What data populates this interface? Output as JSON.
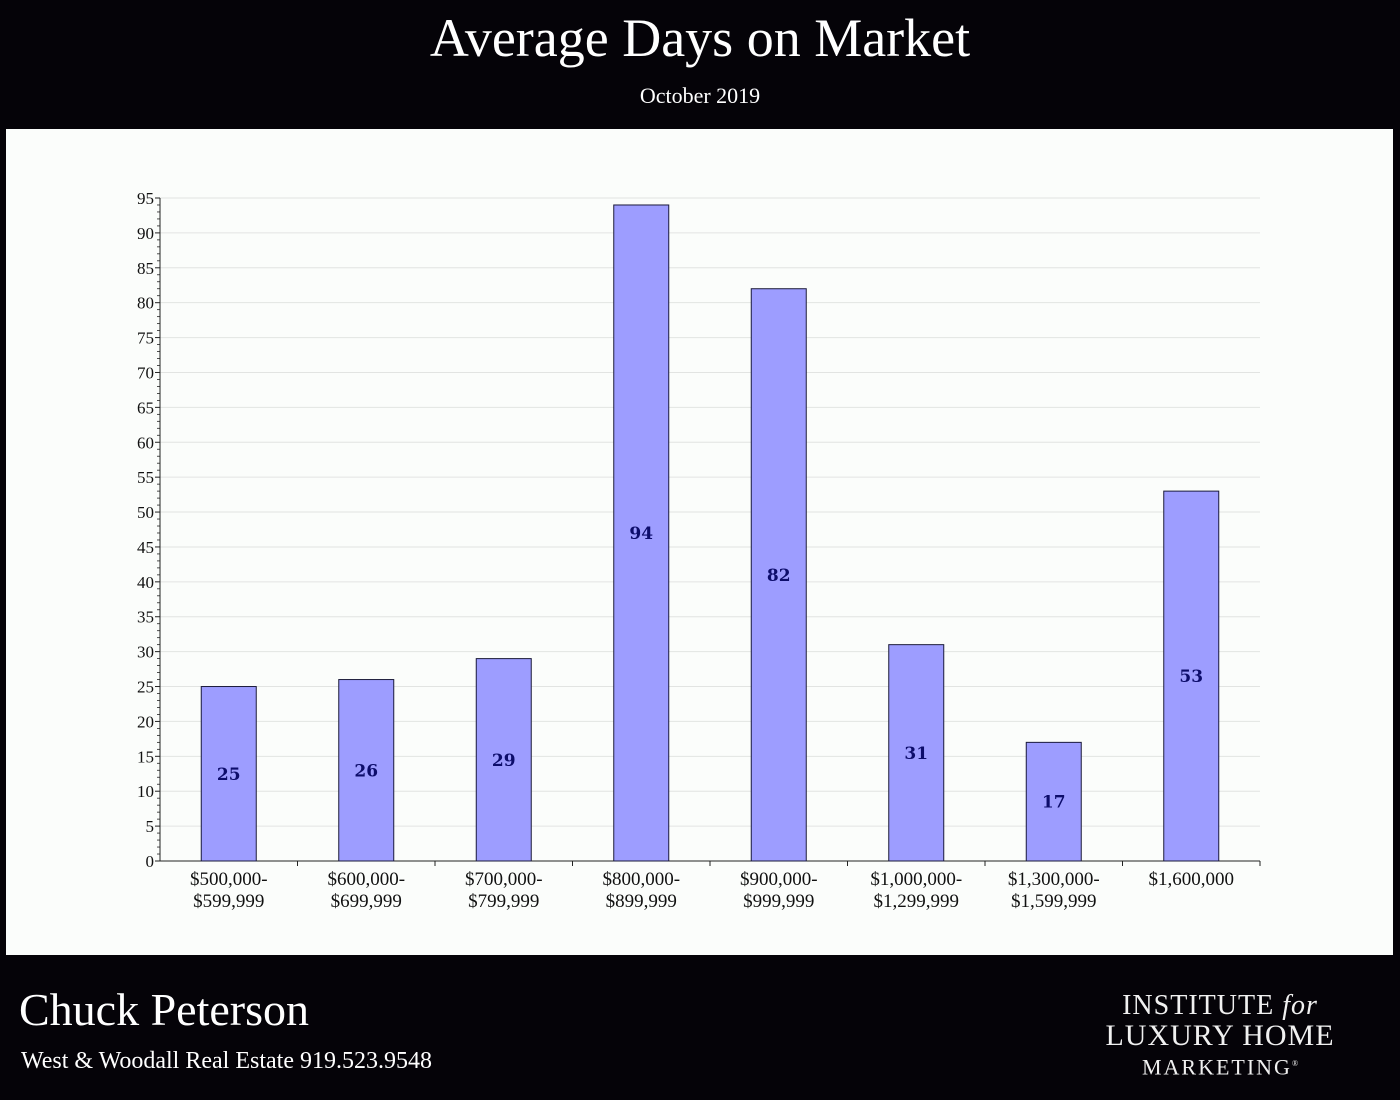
{
  "header": {
    "title": "Average Days on Market",
    "subtitle": "October 2019"
  },
  "chart_data": {
    "type": "bar",
    "categories": [
      [
        "$500,000-",
        "$599,999"
      ],
      [
        "$600,000-",
        "$699,999"
      ],
      [
        "$700,000-",
        "$799,999"
      ],
      [
        "$800,000-",
        "$899,999"
      ],
      [
        "$900,000-",
        "$999,999"
      ],
      [
        "$1,000,000-",
        "$1,299,999"
      ],
      [
        "$1,300,000-",
        "$1,599,999"
      ],
      [
        "$1,600,000"
      ]
    ],
    "values": [
      25,
      26,
      29,
      94,
      82,
      31,
      17,
      53
    ],
    "data_labels": [
      "25",
      "26",
      "29",
      "94",
      "82",
      "31",
      "17",
      "53"
    ],
    "ylim": [
      0,
      95
    ],
    "y_ticks": [
      0,
      5,
      10,
      15,
      20,
      25,
      30,
      35,
      40,
      45,
      50,
      55,
      60,
      65,
      70,
      75,
      80,
      85,
      90,
      95
    ],
    "xlabel": "",
    "ylabel": "",
    "grid": true,
    "legend": "none",
    "colors": {
      "bar_fill": "#9d9dff",
      "bar_stroke": "#1a1a3a",
      "data_label": "#0d0d6b",
      "grid": "#e2e4e2",
      "axis": "#222222",
      "panel_bg": "#fbfdfb",
      "page_bg": "#050308"
    }
  },
  "footer": {
    "agent_name": "Chuck Peterson",
    "agent_info": "West & Woodall Real Estate 919.523.9548",
    "logo_line1_a": "INSTITUTE",
    "logo_line1_b": "for",
    "logo_line2": "LUXURY HOME",
    "logo_line3": "MARKETING",
    "logo_mark": "®"
  }
}
